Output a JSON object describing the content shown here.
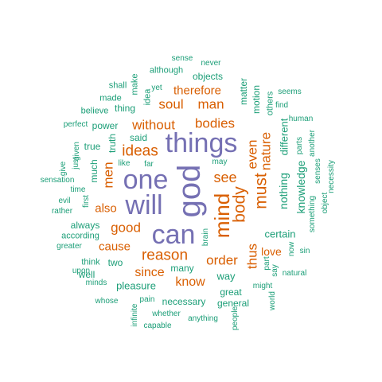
{
  "colors": {
    "purple": "#7570b3",
    "orange": "#d95f02",
    "teal": "#1b9e77"
  },
  "words": [
    {
      "text": "god",
      "tier": "purple",
      "vertical": true
    },
    {
      "text": "things",
      "tier": "purple",
      "vertical": false
    },
    {
      "text": "one",
      "tier": "purple",
      "vertical": false
    },
    {
      "text": "will",
      "tier": "purple",
      "vertical": false
    },
    {
      "text": "can",
      "tier": "purple",
      "vertical": false
    },
    {
      "text": "mind",
      "tier": "orange",
      "vertical": true
    },
    {
      "text": "body",
      "tier": "orange",
      "vertical": true
    },
    {
      "text": "must",
      "tier": "orange",
      "vertical": true
    },
    {
      "text": "ideas",
      "tier": "orange",
      "vertical": false
    },
    {
      "text": "reason",
      "tier": "orange",
      "vertical": false
    },
    {
      "text": "without",
      "tier": "orange",
      "vertical": false
    },
    {
      "text": "bodies",
      "tier": "orange",
      "vertical": false
    },
    {
      "text": "soul",
      "tier": "orange",
      "vertical": false
    },
    {
      "text": "man",
      "tier": "orange",
      "vertical": false
    },
    {
      "text": "therefore",
      "tier": "orange",
      "vertical": false
    },
    {
      "text": "see",
      "tier": "orange",
      "vertical": false
    },
    {
      "text": "even",
      "tier": "orange",
      "vertical": true
    },
    {
      "text": "nature",
      "tier": "orange",
      "vertical": true
    },
    {
      "text": "men",
      "tier": "orange",
      "vertical": true
    },
    {
      "text": "also",
      "tier": "orange",
      "vertical": false
    },
    {
      "text": "good",
      "tier": "orange",
      "vertical": false
    },
    {
      "text": "cause",
      "tier": "orange",
      "vertical": false
    },
    {
      "text": "since",
      "tier": "orange",
      "vertical": false
    },
    {
      "text": "order",
      "tier": "orange",
      "vertical": false
    },
    {
      "text": "know",
      "tier": "orange",
      "vertical": false
    },
    {
      "text": "thus",
      "tier": "orange",
      "vertical": true
    },
    {
      "text": "love",
      "tier": "orange",
      "vertical": false
    },
    {
      "text": "nothing",
      "tier": "teal",
      "vertical": true
    },
    {
      "text": "different",
      "tier": "teal",
      "vertical": true
    },
    {
      "text": "knowledge",
      "tier": "teal",
      "vertical": true
    },
    {
      "text": "certain",
      "tier": "teal",
      "vertical": false
    },
    {
      "text": "way",
      "tier": "teal",
      "vertical": false
    },
    {
      "text": "truth",
      "tier": "teal",
      "vertical": true
    },
    {
      "text": "power",
      "tier": "teal",
      "vertical": false
    },
    {
      "text": "thing",
      "tier": "teal",
      "vertical": false
    },
    {
      "text": "true",
      "tier": "teal",
      "vertical": false
    },
    {
      "text": "said",
      "tier": "teal",
      "vertical": false
    },
    {
      "text": "much",
      "tier": "teal",
      "vertical": true
    },
    {
      "text": "always",
      "tier": "teal",
      "vertical": false
    },
    {
      "text": "according",
      "tier": "teal",
      "vertical": false
    },
    {
      "text": "pleasure",
      "tier": "teal",
      "vertical": false
    },
    {
      "text": "necessary",
      "tier": "teal",
      "vertical": false
    },
    {
      "text": "great",
      "tier": "teal",
      "vertical": false
    },
    {
      "text": "general",
      "tier": "teal",
      "vertical": false
    },
    {
      "text": "many",
      "tier": "teal",
      "vertical": false
    },
    {
      "text": "two",
      "tier": "teal",
      "vertical": false
    },
    {
      "text": "well",
      "tier": "teal",
      "vertical": false
    },
    {
      "text": "think",
      "tier": "teal",
      "vertical": false
    },
    {
      "text": "matter",
      "tier": "teal",
      "vertical": true
    },
    {
      "text": "motion",
      "tier": "teal",
      "vertical": true
    },
    {
      "text": "others",
      "tier": "teal",
      "vertical": true
    },
    {
      "text": "objects",
      "tier": "teal",
      "vertical": false
    },
    {
      "text": "although",
      "tier": "teal",
      "vertical": false
    },
    {
      "text": "idea",
      "tier": "teal",
      "vertical": true
    },
    {
      "text": "believe",
      "tier": "teal",
      "vertical": false
    },
    {
      "text": "made",
      "tier": "teal",
      "vertical": false
    },
    {
      "text": "shall",
      "tier": "teal",
      "vertical": false
    },
    {
      "text": "make",
      "tier": "teal",
      "vertical": true
    },
    {
      "text": "yet",
      "tier": "teal",
      "vertical": false
    },
    {
      "text": "sense",
      "tier": "teal",
      "vertical": false
    },
    {
      "text": "never",
      "tier": "teal",
      "vertical": false
    },
    {
      "text": "seems",
      "tier": "teal",
      "vertical": false
    },
    {
      "text": "find",
      "tier": "teal",
      "vertical": false
    },
    {
      "text": "human",
      "tier": "teal",
      "vertical": false
    },
    {
      "text": "parts",
      "tier": "teal",
      "vertical": true
    },
    {
      "text": "another",
      "tier": "teal",
      "vertical": true
    },
    {
      "text": "senses",
      "tier": "teal",
      "vertical": true
    },
    {
      "text": "necessity",
      "tier": "teal",
      "vertical": true
    },
    {
      "text": "object",
      "tier": "teal",
      "vertical": true
    },
    {
      "text": "something",
      "tier": "teal",
      "vertical": true
    },
    {
      "text": "sin",
      "tier": "teal",
      "vertical": false
    },
    {
      "text": "now",
      "tier": "teal",
      "vertical": true
    },
    {
      "text": "say",
      "tier": "teal",
      "vertical": true
    },
    {
      "text": "part",
      "tier": "teal",
      "vertical": true
    },
    {
      "text": "might",
      "tier": "teal",
      "vertical": false
    },
    {
      "text": "world",
      "tier": "teal",
      "vertical": true
    },
    {
      "text": "natural",
      "tier": "teal",
      "vertical": false
    },
    {
      "text": "people",
      "tier": "teal",
      "vertical": true
    },
    {
      "text": "anything",
      "tier": "teal",
      "vertical": false
    },
    {
      "text": "brain",
      "tier": "teal",
      "vertical": true
    },
    {
      "text": "may",
      "tier": "teal",
      "vertical": false
    },
    {
      "text": "far",
      "tier": "teal",
      "vertical": false
    },
    {
      "text": "like",
      "tier": "teal",
      "vertical": false
    },
    {
      "text": "perfect",
      "tier": "teal",
      "vertical": false
    },
    {
      "text": "given",
      "tier": "teal",
      "vertical": true
    },
    {
      "text": "just",
      "tier": "teal",
      "vertical": true
    },
    {
      "text": "give",
      "tier": "teal",
      "vertical": true
    },
    {
      "text": "sensation",
      "tier": "teal",
      "vertical": false
    },
    {
      "text": "time",
      "tier": "teal",
      "vertical": false
    },
    {
      "text": "evil",
      "tier": "teal",
      "vertical": false
    },
    {
      "text": "rather",
      "tier": "teal",
      "vertical": false
    },
    {
      "text": "first",
      "tier": "teal",
      "vertical": true
    },
    {
      "text": "greater",
      "tier": "teal",
      "vertical": false
    },
    {
      "text": "upon",
      "tier": "teal",
      "vertical": false
    },
    {
      "text": "minds",
      "tier": "teal",
      "vertical": false
    },
    {
      "text": "whose",
      "tier": "teal",
      "vertical": false
    },
    {
      "text": "pain",
      "tier": "teal",
      "vertical": false
    },
    {
      "text": "infinite",
      "tier": "teal",
      "vertical": true
    },
    {
      "text": "whether",
      "tier": "teal",
      "vertical": false
    },
    {
      "text": "capable",
      "tier": "teal",
      "vertical": false
    }
  ]
}
